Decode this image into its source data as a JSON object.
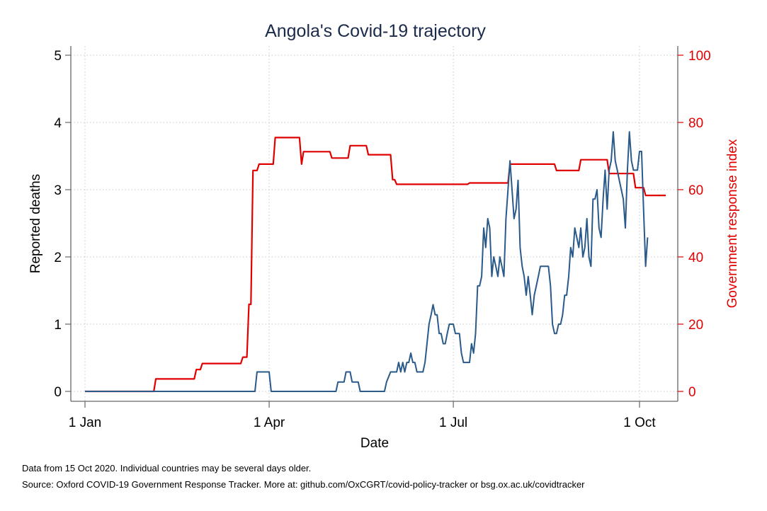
{
  "chart_data": {
    "type": "line",
    "title": "Angola's Covid-19 trajectory",
    "xlabel": "Date",
    "ylabel_left": "Reported deaths",
    "ylabel_right": "Government response index",
    "x_range": [
      "2020-01-01",
      "2020-10-15"
    ],
    "x_ticks": [
      {
        "date": "2020-01-01",
        "label": "1 Jan"
      },
      {
        "date": "2020-04-01",
        "label": "1 Apr"
      },
      {
        "date": "2020-07-01",
        "label": "1 Jul"
      },
      {
        "date": "2020-10-01",
        "label": "1 Oct"
      }
    ],
    "y_left": {
      "range": [
        0,
        5
      ],
      "ticks": [
        "0",
        "1",
        "2",
        "3",
        "4",
        "5"
      ]
    },
    "y_right": {
      "range": [
        0,
        100
      ],
      "ticks": [
        "0",
        "20",
        "40",
        "60",
        "80",
        "100"
      ]
    },
    "grid": true,
    "colors": {
      "deaths": "#2a5a8a",
      "index": "#e00000",
      "title": "#1a2a4a",
      "axis": "#666666"
    },
    "series": [
      {
        "axis": "left",
        "color": "#2a5a8a",
        "points": [
          [
            "2020-01-01",
            0
          ],
          [
            "2020-03-25",
            0
          ],
          [
            "2020-03-26",
            0.29
          ],
          [
            "2020-04-01",
            0.29
          ],
          [
            "2020-04-02",
            0
          ],
          [
            "2020-05-04",
            0
          ],
          [
            "2020-05-05",
            0.14
          ],
          [
            "2020-05-08",
            0.14
          ],
          [
            "2020-05-09",
            0.29
          ],
          [
            "2020-05-11",
            0.29
          ],
          [
            "2020-05-12",
            0.14
          ],
          [
            "2020-05-15",
            0.14
          ],
          [
            "2020-05-16",
            0
          ],
          [
            "2020-05-28",
            0
          ],
          [
            "2020-05-29",
            0.14
          ],
          [
            "2020-05-31",
            0.29
          ],
          [
            "2020-06-03",
            0.29
          ],
          [
            "2020-06-04",
            0.43
          ],
          [
            "2020-06-05",
            0.29
          ],
          [
            "2020-06-06",
            0.43
          ],
          [
            "2020-06-07",
            0.29
          ],
          [
            "2020-06-08",
            0.43
          ],
          [
            "2020-06-09",
            0.43
          ],
          [
            "2020-06-10",
            0.57
          ],
          [
            "2020-06-11",
            0.43
          ],
          [
            "2020-06-12",
            0.43
          ],
          [
            "2020-06-13",
            0.29
          ],
          [
            "2020-06-16",
            0.29
          ],
          [
            "2020-06-17",
            0.43
          ],
          [
            "2020-06-18",
            0.71
          ],
          [
            "2020-06-19",
            1.0
          ],
          [
            "2020-06-20",
            1.14
          ],
          [
            "2020-06-21",
            1.29
          ],
          [
            "2020-06-22",
            1.14
          ],
          [
            "2020-06-23",
            1.14
          ],
          [
            "2020-06-24",
            0.86
          ],
          [
            "2020-06-25",
            0.86
          ],
          [
            "2020-06-26",
            0.71
          ],
          [
            "2020-06-27",
            0.71
          ],
          [
            "2020-06-28",
            0.86
          ],
          [
            "2020-06-29",
            1.0
          ],
          [
            "2020-07-01",
            1.0
          ],
          [
            "2020-07-02",
            0.86
          ],
          [
            "2020-07-04",
            0.86
          ],
          [
            "2020-07-05",
            0.57
          ],
          [
            "2020-07-06",
            0.43
          ],
          [
            "2020-07-09",
            0.43
          ],
          [
            "2020-07-10",
            0.71
          ],
          [
            "2020-07-11",
            0.57
          ],
          [
            "2020-07-12",
            0.86
          ],
          [
            "2020-07-13",
            1.57
          ],
          [
            "2020-07-14",
            1.57
          ],
          [
            "2020-07-15",
            1.71
          ],
          [
            "2020-07-16",
            2.43
          ],
          [
            "2020-07-17",
            2.14
          ],
          [
            "2020-07-18",
            2.57
          ],
          [
            "2020-07-19",
            2.43
          ],
          [
            "2020-07-20",
            1.71
          ],
          [
            "2020-07-21",
            2.0
          ],
          [
            "2020-07-22",
            1.86
          ],
          [
            "2020-07-23",
            1.71
          ],
          [
            "2020-07-24",
            2.0
          ],
          [
            "2020-07-25",
            1.86
          ],
          [
            "2020-07-26",
            1.71
          ],
          [
            "2020-07-27",
            2.57
          ],
          [
            "2020-07-28",
            3.0
          ],
          [
            "2020-07-29",
            3.43
          ],
          [
            "2020-07-30",
            3.0
          ],
          [
            "2020-07-31",
            2.57
          ],
          [
            "2020-08-01",
            2.71
          ],
          [
            "2020-08-02",
            3.14
          ],
          [
            "2020-08-03",
            2.14
          ],
          [
            "2020-08-04",
            1.86
          ],
          [
            "2020-08-05",
            1.71
          ],
          [
            "2020-08-06",
            1.43
          ],
          [
            "2020-08-07",
            1.71
          ],
          [
            "2020-08-08",
            1.43
          ],
          [
            "2020-08-09",
            1.14
          ],
          [
            "2020-08-10",
            1.43
          ],
          [
            "2020-08-11",
            1.57
          ],
          [
            "2020-08-12",
            1.71
          ],
          [
            "2020-08-13",
            1.86
          ],
          [
            "2020-08-17",
            1.86
          ],
          [
            "2020-08-18",
            1.57
          ],
          [
            "2020-08-19",
            1.0
          ],
          [
            "2020-08-20",
            0.86
          ],
          [
            "2020-08-21",
            0.86
          ],
          [
            "2020-08-22",
            1.0
          ],
          [
            "2020-08-23",
            1.0
          ],
          [
            "2020-08-24",
            1.14
          ],
          [
            "2020-08-25",
            1.43
          ],
          [
            "2020-08-26",
            1.43
          ],
          [
            "2020-08-27",
            1.71
          ],
          [
            "2020-08-28",
            2.14
          ],
          [
            "2020-08-29",
            2.0
          ],
          [
            "2020-08-30",
            2.43
          ],
          [
            "2020-08-31",
            2.29
          ],
          [
            "2020-09-01",
            2.14
          ],
          [
            "2020-09-02",
            2.43
          ],
          [
            "2020-09-03",
            2.0
          ],
          [
            "2020-09-04",
            2.14
          ],
          [
            "2020-09-05",
            2.57
          ],
          [
            "2020-09-06",
            2.0
          ],
          [
            "2020-09-07",
            1.86
          ],
          [
            "2020-09-08",
            2.86
          ],
          [
            "2020-09-09",
            2.86
          ],
          [
            "2020-09-10",
            3.0
          ],
          [
            "2020-09-11",
            2.43
          ],
          [
            "2020-09-12",
            2.29
          ],
          [
            "2020-09-13",
            2.86
          ],
          [
            "2020-09-14",
            3.29
          ],
          [
            "2020-09-15",
            2.71
          ],
          [
            "2020-09-16",
            3.29
          ],
          [
            "2020-09-17",
            3.43
          ],
          [
            "2020-09-18",
            3.86
          ],
          [
            "2020-09-19",
            3.43
          ],
          [
            "2020-09-20",
            3.29
          ],
          [
            "2020-09-21",
            3.14
          ],
          [
            "2020-09-22",
            3.0
          ],
          [
            "2020-09-23",
            2.86
          ],
          [
            "2020-09-24",
            2.43
          ],
          [
            "2020-09-25",
            3.29
          ],
          [
            "2020-09-26",
            3.86
          ],
          [
            "2020-09-27",
            3.43
          ],
          [
            "2020-09-28",
            3.29
          ],
          [
            "2020-09-29",
            3.29
          ],
          [
            "2020-09-30",
            3.29
          ],
          [
            "2020-10-01",
            3.57
          ],
          [
            "2020-10-02",
            3.57
          ],
          [
            "2020-10-03",
            2.71
          ],
          [
            "2020-10-04",
            1.86
          ],
          [
            "2020-10-05",
            2.29
          ]
        ]
      },
      {
        "axis": "right",
        "color": "#e00000",
        "points": [
          [
            "2020-01-01",
            0
          ],
          [
            "2020-02-04",
            0
          ],
          [
            "2020-02-05",
            3.7
          ],
          [
            "2020-02-24",
            3.7
          ],
          [
            "2020-02-25",
            6.5
          ],
          [
            "2020-02-27",
            6.5
          ],
          [
            "2020-02-28",
            8.3
          ],
          [
            "2020-03-18",
            8.3
          ],
          [
            "2020-03-19",
            10.2
          ],
          [
            "2020-03-21",
            10.2
          ],
          [
            "2020-03-22",
            25.9
          ],
          [
            "2020-03-23",
            25.9
          ],
          [
            "2020-03-24",
            65.7
          ],
          [
            "2020-03-26",
            65.7
          ],
          [
            "2020-03-27",
            67.6
          ],
          [
            "2020-04-03",
            67.6
          ],
          [
            "2020-04-04",
            75.5
          ],
          [
            "2020-04-16",
            75.5
          ],
          [
            "2020-04-17",
            67.6
          ],
          [
            "2020-04-18",
            71.3
          ],
          [
            "2020-05-01",
            71.3
          ],
          [
            "2020-05-02",
            69.4
          ],
          [
            "2020-05-10",
            69.4
          ],
          [
            "2020-05-11",
            73.1
          ],
          [
            "2020-05-19",
            73.1
          ],
          [
            "2020-05-20",
            70.4
          ],
          [
            "2020-05-31",
            70.4
          ],
          [
            "2020-06-01",
            63.0
          ],
          [
            "2020-06-02",
            63.0
          ],
          [
            "2020-06-03",
            61.6
          ],
          [
            "2020-07-08",
            61.6
          ],
          [
            "2020-07-09",
            62.0
          ],
          [
            "2020-07-28",
            62.0
          ],
          [
            "2020-07-29",
            67.6
          ],
          [
            "2020-08-20",
            67.6
          ],
          [
            "2020-08-21",
            65.7
          ],
          [
            "2020-09-01",
            65.7
          ],
          [
            "2020-09-02",
            68.9
          ],
          [
            "2020-09-15",
            68.9
          ],
          [
            "2020-09-16",
            64.8
          ],
          [
            "2020-09-28",
            64.8
          ],
          [
            "2020-09-29",
            60.6
          ],
          [
            "2020-10-03",
            60.6
          ],
          [
            "2020-10-04",
            58.3
          ],
          [
            "2020-10-14",
            58.3
          ]
        ]
      }
    ]
  },
  "notes": [
    "Data from 15 Oct 2020. Individual countries may be several days older.",
    "Source: Oxford COVID-19 Government Response Tracker. More at: github.com/OxCGRT/covid-policy-tracker or bsg.ox.ac.uk/covidtracker"
  ]
}
